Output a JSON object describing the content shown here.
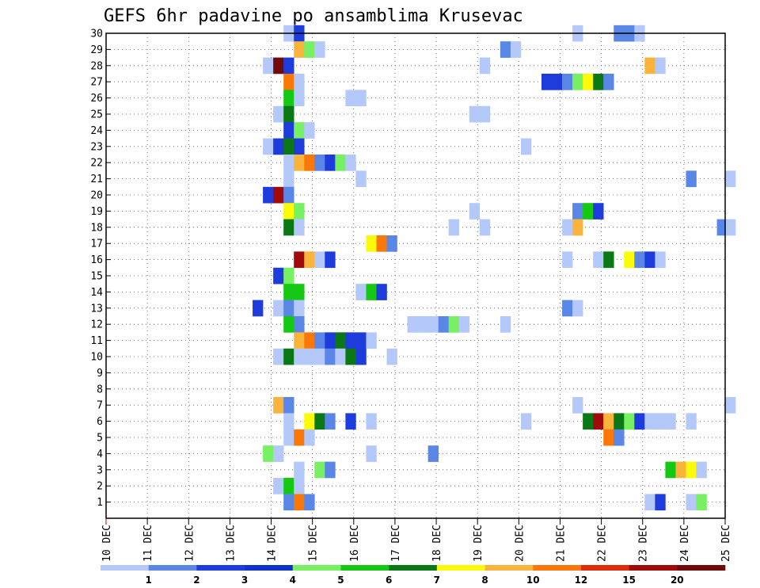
{
  "chart_data": {
    "type": "heatmap",
    "title": "GEFS 6hr padavine po ansamblima Krusevac",
    "x_tick_labels": [
      "10 DEC",
      "11 DEC",
      "12 DEC",
      "13 DEC",
      "14 DEC",
      "15 DEC",
      "16 DEC",
      "17 DEC",
      "18 DEC",
      "19 DEC",
      "20 DEC",
      "21 DEC",
      "22 DEC",
      "23 DEC",
      "24 DEC",
      "25 DEC"
    ],
    "y_tick_labels": [
      "1",
      "2",
      "3",
      "4",
      "5",
      "6",
      "7",
      "8",
      "9",
      "10",
      "11",
      "12",
      "13",
      "14",
      "15",
      "16",
      "17",
      "18",
      "19",
      "20",
      "21",
      "22",
      "23",
      "24",
      "25",
      "26",
      "27",
      "28",
      "29",
      "30"
    ],
    "xlim_days": [
      0,
      15
    ],
    "ylim": [
      0,
      30
    ],
    "grid": true,
    "legend_position": "bottom",
    "levels": [
      "1",
      "2",
      "3",
      "4",
      "5",
      "6",
      "7",
      "8",
      "10",
      "12",
      "15",
      "20"
    ],
    "level_colors": [
      "#b4c8fa",
      "#5a87e6",
      "#1e3cdc",
      "#0f32c8",
      "#78f064",
      "#14c814",
      "#0a7814",
      "#fafa0a",
      "#fab43c",
      "#fa780a",
      "#dc2d0a",
      "#a00a0a",
      "#6e0a0a"
    ],
    "cells": [
      [
        30,
        14.3,
        1
      ],
      [
        30,
        14.55,
        3
      ],
      [
        30,
        21.3,
        1
      ],
      [
        30,
        22.3,
        2
      ],
      [
        30,
        22.55,
        2
      ],
      [
        30,
        22.8,
        1
      ],
      [
        29,
        14.55,
        9
      ],
      [
        29,
        14.8,
        5
      ],
      [
        29,
        15.05,
        1
      ],
      [
        29,
        19.55,
        2
      ],
      [
        29,
        19.8,
        1
      ],
      [
        28,
        13.8,
        1
      ],
      [
        28,
        14.05,
        13
      ],
      [
        28,
        14.3,
        3
      ],
      [
        28,
        19.05,
        1
      ],
      [
        28,
        23.05,
        9
      ],
      [
        28,
        23.3,
        1
      ],
      [
        27,
        14.3,
        10
      ],
      [
        27,
        14.55,
        1
      ],
      [
        27,
        20.55,
        3
      ],
      [
        27,
        20.8,
        3
      ],
      [
        27,
        21.05,
        2
      ],
      [
        27,
        21.3,
        5
      ],
      [
        27,
        21.55,
        8
      ],
      [
        27,
        21.8,
        7
      ],
      [
        27,
        22.05,
        2
      ],
      [
        26,
        14.3,
        6
      ],
      [
        26,
        14.55,
        1
      ],
      [
        26,
        15.8,
        1
      ],
      [
        26,
        16.05,
        1
      ],
      [
        25,
        14.05,
        1
      ],
      [
        25,
        14.3,
        7
      ],
      [
        25,
        18.8,
        1
      ],
      [
        25,
        19.05,
        1
      ],
      [
        24,
        14.3,
        3
      ],
      [
        24,
        14.55,
        5
      ],
      [
        24,
        14.8,
        1
      ],
      [
        23,
        13.8,
        1
      ],
      [
        23,
        14.05,
        3
      ],
      [
        23,
        14.3,
        7
      ],
      [
        23,
        14.55,
        3
      ],
      [
        23,
        20.05,
        1
      ],
      [
        22,
        14.3,
        1
      ],
      [
        22,
        14.55,
        9
      ],
      [
        22,
        14.8,
        10
      ],
      [
        22,
        15.05,
        2
      ],
      [
        22,
        15.3,
        3
      ],
      [
        22,
        15.55,
        5
      ],
      [
        22,
        15.8,
        1
      ],
      [
        21,
        14.3,
        1
      ],
      [
        21,
        16.05,
        1
      ],
      [
        21,
        24.05,
        2
      ],
      [
        21,
        25.0,
        1
      ],
      [
        20,
        13.8,
        3
      ],
      [
        20,
        14.05,
        12
      ],
      [
        20,
        14.3,
        2
      ],
      [
        19,
        14.3,
        8
      ],
      [
        19,
        14.55,
        5
      ],
      [
        19,
        18.8,
        1
      ],
      [
        19,
        21.3,
        2
      ],
      [
        19,
        21.55,
        6
      ],
      [
        19,
        21.8,
        3
      ],
      [
        18,
        14.3,
        7
      ],
      [
        18,
        14.55,
        1
      ],
      [
        18,
        18.3,
        1
      ],
      [
        18,
        19.05,
        1
      ],
      [
        18,
        21.05,
        1
      ],
      [
        18,
        21.3,
        9
      ],
      [
        18,
        24.8,
        2
      ],
      [
        18,
        25.0,
        1
      ],
      [
        17,
        16.3,
        8
      ],
      [
        17,
        16.55,
        10
      ],
      [
        17,
        16.8,
        2
      ],
      [
        16,
        14.55,
        12
      ],
      [
        16,
        14.8,
        9
      ],
      [
        16,
        15.05,
        1
      ],
      [
        16,
        15.3,
        3
      ],
      [
        16,
        21.05,
        1
      ],
      [
        16,
        21.8,
        1
      ],
      [
        16,
        22.05,
        7
      ],
      [
        16,
        22.55,
        8
      ],
      [
        16,
        22.8,
        2
      ],
      [
        16,
        23.05,
        3
      ],
      [
        16,
        23.3,
        1
      ],
      [
        15,
        14.05,
        3
      ],
      [
        15,
        14.3,
        5
      ],
      [
        14,
        14.3,
        6
      ],
      [
        14,
        14.55,
        6
      ],
      [
        14,
        16.05,
        1
      ],
      [
        14,
        16.3,
        6
      ],
      [
        14,
        16.55,
        3
      ],
      [
        13,
        13.55,
        3
      ],
      [
        13,
        14.05,
        1
      ],
      [
        13,
        14.3,
        2
      ],
      [
        13,
        14.55,
        1
      ],
      [
        13,
        21.05,
        2
      ],
      [
        13,
        21.3,
        1
      ],
      [
        12,
        14.3,
        6
      ],
      [
        12,
        14.55,
        2
      ],
      [
        12,
        17.3,
        1
      ],
      [
        12,
        17.55,
        1
      ],
      [
        12,
        17.8,
        1
      ],
      [
        12,
        18.05,
        2
      ],
      [
        12,
        18.3,
        5
      ],
      [
        12,
        18.55,
        1
      ],
      [
        12,
        19.55,
        1
      ],
      [
        11,
        14.55,
        9
      ],
      [
        11,
        14.8,
        10
      ],
      [
        11,
        15.05,
        2
      ],
      [
        11,
        15.3,
        3
      ],
      [
        11,
        15.55,
        7
      ],
      [
        11,
        15.8,
        3
      ],
      [
        11,
        16.05,
        3
      ],
      [
        11,
        16.3,
        1
      ],
      [
        10,
        14.05,
        1
      ],
      [
        10,
        14.3,
        7
      ],
      [
        10,
        14.55,
        1
      ],
      [
        10,
        14.8,
        1
      ],
      [
        10,
        15.05,
        1
      ],
      [
        10,
        15.3,
        2
      ],
      [
        10,
        15.55,
        1
      ],
      [
        10,
        15.8,
        7
      ],
      [
        10,
        16.05,
        3
      ],
      [
        10,
        16.8,
        1
      ],
      [
        7,
        14.05,
        9
      ],
      [
        7,
        14.3,
        2
      ],
      [
        7,
        21.3,
        1
      ],
      [
        7,
        25.0,
        1
      ],
      [
        6,
        14.3,
        1
      ],
      [
        6,
        14.8,
        8
      ],
      [
        6,
        15.05,
        7
      ],
      [
        6,
        15.3,
        2
      ],
      [
        6,
        15.8,
        3
      ],
      [
        6,
        16.3,
        1
      ],
      [
        6,
        20.05,
        1
      ],
      [
        6,
        21.55,
        7
      ],
      [
        6,
        21.8,
        12
      ],
      [
        6,
        22.05,
        9
      ],
      [
        6,
        22.3,
        7
      ],
      [
        6,
        22.55,
        5
      ],
      [
        6,
        22.8,
        3
      ],
      [
        6,
        23.05,
        1
      ],
      [
        6,
        23.3,
        1
      ],
      [
        6,
        23.55,
        1
      ],
      [
        6,
        24.05,
        1
      ],
      [
        5,
        14.3,
        1
      ],
      [
        5,
        14.55,
        10
      ],
      [
        5,
        14.8,
        1
      ],
      [
        5,
        22.05,
        10
      ],
      [
        5,
        22.3,
        2
      ],
      [
        4,
        13.8,
        5
      ],
      [
        4,
        14.05,
        1
      ],
      [
        4,
        16.3,
        1
      ],
      [
        4,
        17.8,
        2
      ],
      [
        3,
        14.55,
        1
      ],
      [
        3,
        15.05,
        5
      ],
      [
        3,
        15.3,
        2
      ],
      [
        3,
        23.55,
        6
      ],
      [
        3,
        23.8,
        9
      ],
      [
        3,
        24.05,
        8
      ],
      [
        3,
        24.3,
        1
      ],
      [
        2,
        14.05,
        1
      ],
      [
        2,
        14.3,
        6
      ],
      [
        2,
        14.55,
        1
      ],
      [
        1,
        14.3,
        2
      ],
      [
        1,
        14.55,
        10
      ],
      [
        1,
        14.8,
        2
      ],
      [
        1,
        23.05,
        1
      ],
      [
        1,
        23.3,
        3
      ],
      [
        1,
        24.05,
        1
      ],
      [
        1,
        24.3,
        5
      ]
    ]
  }
}
